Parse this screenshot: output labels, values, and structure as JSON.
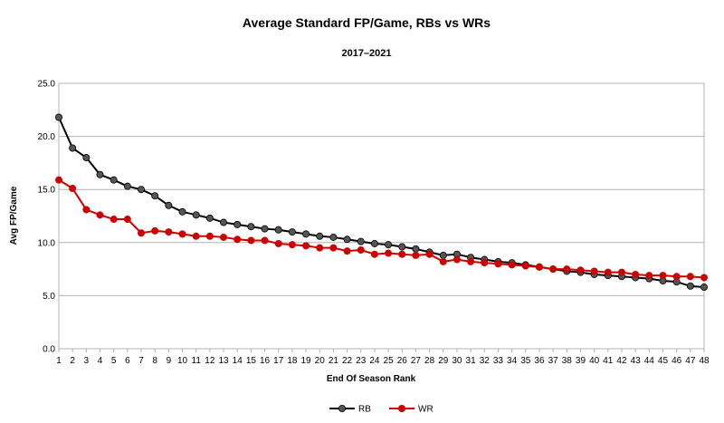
{
  "chart_data": {
    "type": "line",
    "title": "Average Standard FP/Game, RBs vs WRs",
    "subtitle": "2017–2021",
    "xlabel": "End Of Season Rank",
    "ylabel": "Avg FP/Game",
    "ylim": [
      0,
      25
    ],
    "yticks": [
      "0.0",
      "5.0",
      "10.0",
      "15.0",
      "20.0",
      "25.0"
    ],
    "grid": "horizontal",
    "legend": "bottom-center",
    "x": [
      1,
      2,
      3,
      4,
      5,
      6,
      7,
      8,
      9,
      10,
      11,
      12,
      13,
      14,
      15,
      16,
      17,
      18,
      19,
      20,
      21,
      22,
      23,
      24,
      25,
      26,
      27,
      28,
      29,
      30,
      31,
      32,
      33,
      34,
      35,
      36,
      37,
      38,
      39,
      40,
      41,
      42,
      43,
      44,
      45,
      46,
      47,
      48
    ],
    "series": [
      {
        "name": "RB",
        "color": "#000000",
        "marker_color": "#555555",
        "values": [
          21.8,
          18.9,
          18.0,
          16.4,
          15.9,
          15.3,
          15.0,
          14.4,
          13.5,
          12.9,
          12.6,
          12.3,
          11.9,
          11.7,
          11.5,
          11.3,
          11.2,
          11.0,
          10.8,
          10.6,
          10.5,
          10.3,
          10.1,
          9.9,
          9.8,
          9.6,
          9.4,
          9.1,
          8.8,
          8.9,
          8.6,
          8.4,
          8.2,
          8.1,
          7.9,
          7.7,
          7.5,
          7.3,
          7.2,
          7.0,
          6.9,
          6.8,
          6.7,
          6.6,
          6.4,
          6.3,
          5.9,
          5.8
        ]
      },
      {
        "name": "WR",
        "color": "#cc0000",
        "marker_color": "#cc0000",
        "values": [
          15.9,
          15.1,
          13.1,
          12.6,
          12.2,
          12.2,
          10.9,
          11.1,
          11.0,
          10.8,
          10.6,
          10.6,
          10.5,
          10.3,
          10.2,
          10.2,
          9.9,
          9.8,
          9.7,
          9.5,
          9.5,
          9.2,
          9.3,
          8.9,
          9.0,
          8.9,
          8.8,
          8.9,
          8.2,
          8.4,
          8.2,
          8.1,
          8.0,
          7.9,
          7.8,
          7.7,
          7.5,
          7.5,
          7.4,
          7.3,
          7.2,
          7.2,
          7.0,
          6.9,
          6.9,
          6.8,
          6.8,
          6.7
        ]
      }
    ]
  }
}
